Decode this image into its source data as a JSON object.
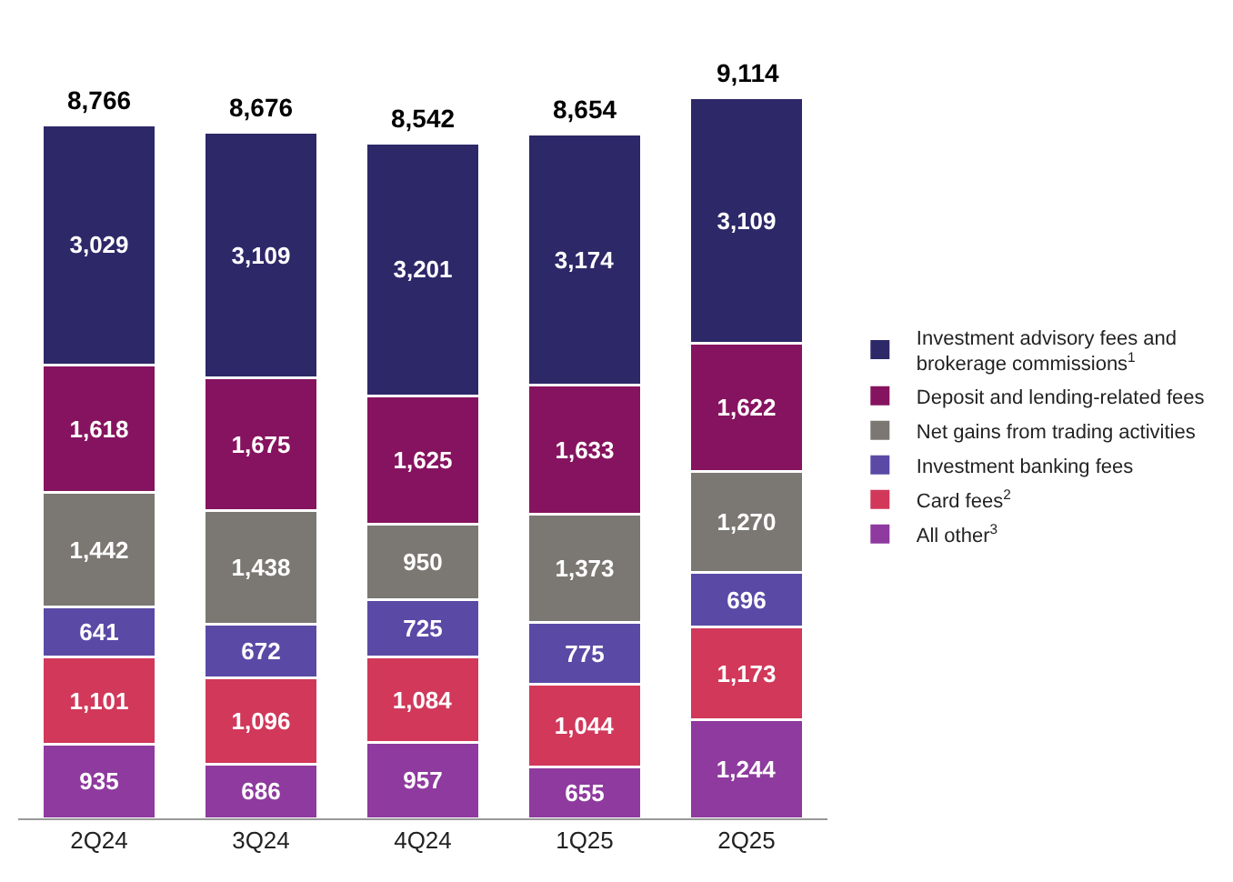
{
  "chart_data": {
    "type": "bar",
    "stacked": true,
    "legend": "right",
    "categories": [
      "2Q24",
      "3Q24",
      "4Q24",
      "1Q25",
      "2Q25"
    ],
    "series": [
      {
        "name": "All other$^{3}$",
        "color": "#8e3a9e",
        "values": [
          935,
          686,
          957,
          655,
          1244
        ],
        "value_labels": [
          "935",
          "686",
          "957",
          "655",
          "1,244"
        ]
      },
      {
        "name": "Card fees$^{2}$",
        "color": "#d1385a",
        "values": [
          1101,
          1096,
          1084,
          1044,
          1173
        ],
        "value_labels": [
          "1,101",
          "1,096",
          "1,084",
          "1,044",
          "1,173"
        ]
      },
      {
        "name": "Investment banking fees",
        "color": "#5a4aa6",
        "values": [
          641,
          672,
          725,
          775,
          696
        ],
        "value_labels": [
          "641",
          "672",
          "725",
          "775",
          "696"
        ]
      },
      {
        "name": "Net gains from trading activities",
        "color": "#7b7772",
        "values": [
          1442,
          1438,
          950,
          1373,
          1270
        ],
        "value_labels": [
          "1,442",
          "1,438",
          "950",
          "1,373",
          "1,270"
        ]
      },
      {
        "name": "Deposit and lending-related fees",
        "color": "#86135f",
        "values": [
          1618,
          1675,
          1625,
          1633,
          1622
        ],
        "value_labels": [
          "1,618",
          "1,675",
          "1,625",
          "1,633",
          "1,622"
        ]
      },
      {
        "name": "Investment advisory fees and brokerage commissions$^{1}$",
        "color": "#2d2868",
        "values": [
          3029,
          3109,
          3201,
          3174,
          3109
        ],
        "value_labels": [
          "3,029",
          "3,109",
          "3,201",
          "3,174",
          "3,109"
        ]
      }
    ],
    "totals": [
      "8,766",
      "8,676",
      "8,542",
      "8,654",
      "9,114"
    ]
  }
}
